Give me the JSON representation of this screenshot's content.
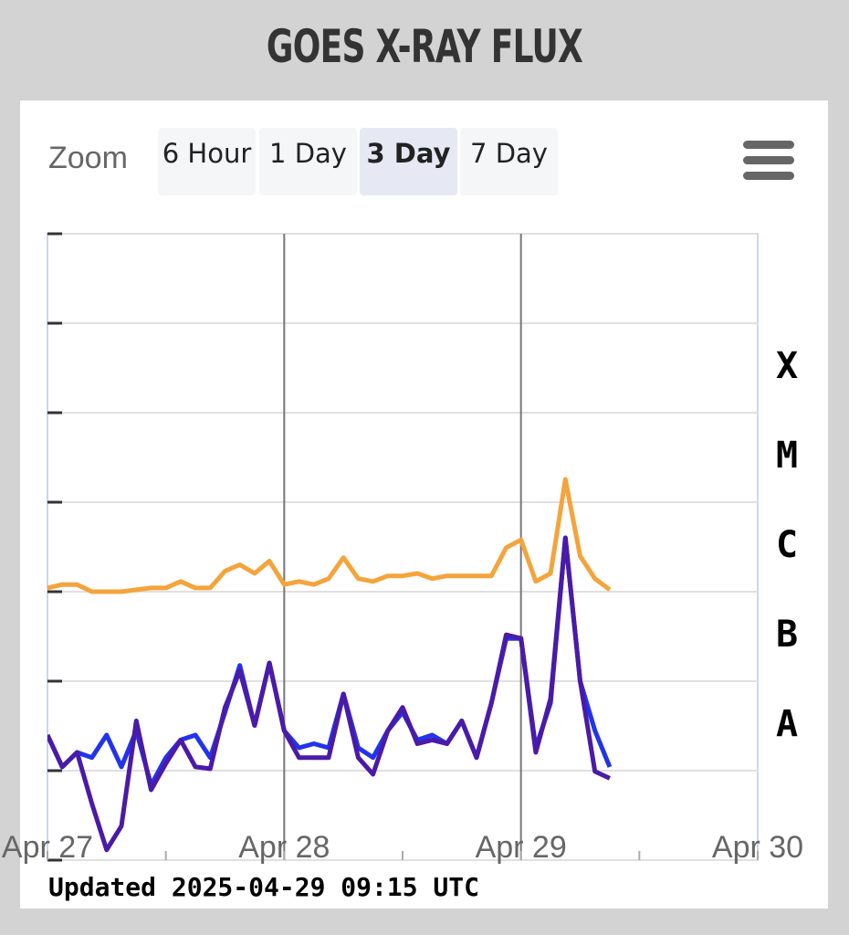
{
  "toolbar": {
    "zoom_label": "Zoom",
    "buttons": [
      "6 Hour",
      "1 Day",
      "3 Day",
      "7 Day"
    ],
    "active": 2
  },
  "footer": {
    "updated": "Updated 2025-04-29 09:15 UTC"
  },
  "chart_data": {
    "type": "line",
    "title": "GOES X-RAY FLUX",
    "x": [
      0,
      1.5,
      3,
      4.5,
      6,
      7.5,
      9,
      10.5,
      12,
      13.5,
      15,
      16.5,
      18,
      19.5,
      21,
      22.5,
      24,
      25.5,
      27,
      28.5,
      30,
      31.5,
      33,
      34.5,
      36,
      37.5,
      39,
      40.5,
      42,
      43.5,
      45,
      46.5,
      48,
      49.5,
      51,
      52.5,
      54,
      55.5,
      57
    ],
    "series": [
      {
        "color": "#f4a43c",
        "values": [
          1.1e-06,
          1.2e-06,
          1.2e-06,
          1e-06,
          1e-06,
          1e-06,
          1.05e-06,
          1.1e-06,
          1.1e-06,
          1.3e-06,
          1.1e-06,
          1.1e-06,
          1.7e-06,
          2e-06,
          1.6e-06,
          2.2e-06,
          1.2e-06,
          1.3e-06,
          1.2e-06,
          1.4e-06,
          2.4e-06,
          1.4e-06,
          1.3e-06,
          1.5e-06,
          1.5e-06,
          1.6e-06,
          1.4e-06,
          1.5e-06,
          1.5e-06,
          1.5e-06,
          1.5e-06,
          3.1e-06,
          3.8e-06,
          1.3e-06,
          1.6e-06,
          1.8e-05,
          2.5e-06,
          1.4e-06,
          1.05e-06
        ]
      },
      {
        "color": "#2233ee",
        "values": [
          2.5e-08,
          1.1e-08,
          1.6e-08,
          1.4e-08,
          2.5e-08,
          1.1e-08,
          2.8e-08,
          6.9e-09,
          1.4e-08,
          2.2e-08,
          2.5e-08,
          1.4e-08,
          4.5e-08,
          1.5e-07,
          3.2e-08,
          1.6e-07,
          2.8e-08,
          1.8e-08,
          2e-08,
          1.8e-08,
          7.2e-08,
          1.8e-08,
          1.4e-08,
          2.8e-08,
          4.5e-08,
          2.2e-08,
          2.5e-08,
          2e-08,
          3.6e-08,
          1.4e-08,
          5.7e-08,
          3e-07,
          3e-07,
          1.8e-08,
          5.7e-08,
          4e-06,
          1e-07,
          2.8e-08,
          1.1e-08
        ]
      },
      {
        "color": "#4a1aa8",
        "values": [
          2.5e-08,
          1.1e-08,
          1.6e-08,
          4.3e-09,
          1.3e-09,
          2.4e-09,
          3.6e-08,
          6.1e-09,
          1.2e-08,
          2.2e-08,
          1.1e-08,
          1.05e-08,
          5.1e-08,
          1.3e-07,
          3.2e-08,
          1.6e-07,
          2.8e-08,
          1.4e-08,
          1.4e-08,
          1.4e-08,
          7.2e-08,
          1.4e-08,
          9.1e-09,
          2.8e-08,
          5.1e-08,
          2e-08,
          2.2e-08,
          2e-08,
          3.6e-08,
          1.4e-08,
          5.7e-08,
          3.3e-07,
          3e-07,
          1.6e-08,
          6.4e-08,
          4e-06,
          1e-07,
          9.8e-09,
          8.2e-09
        ]
      }
    ],
    "xlim": [
      0,
      72
    ],
    "xticks": [
      {
        "value": 0,
        "label": "Apr 27"
      },
      12,
      {
        "value": 24,
        "label": "Apr 28"
      },
      36,
      {
        "value": 48,
        "label": "Apr 29"
      },
      60,
      {
        "value": 72,
        "label": "Apr 30"
      }
    ],
    "ylim": [
      1e-09,
      0.01
    ],
    "yticks": [
      1e-09,
      1e-08,
      1e-07,
      1e-06,
      1e-05,
      0.0001,
      0.001,
      0.01
    ],
    "log_scale": true,
    "grid": true,
    "flare_classes": [
      {
        "label": "A",
        "value": 1e-08
      },
      {
        "label": "B",
        "value": 1e-07
      },
      {
        "label": "C",
        "value": 1e-06
      },
      {
        "label": "M",
        "value": 1e-05
      },
      {
        "label": "X",
        "value": 0.0001
      }
    ]
  }
}
